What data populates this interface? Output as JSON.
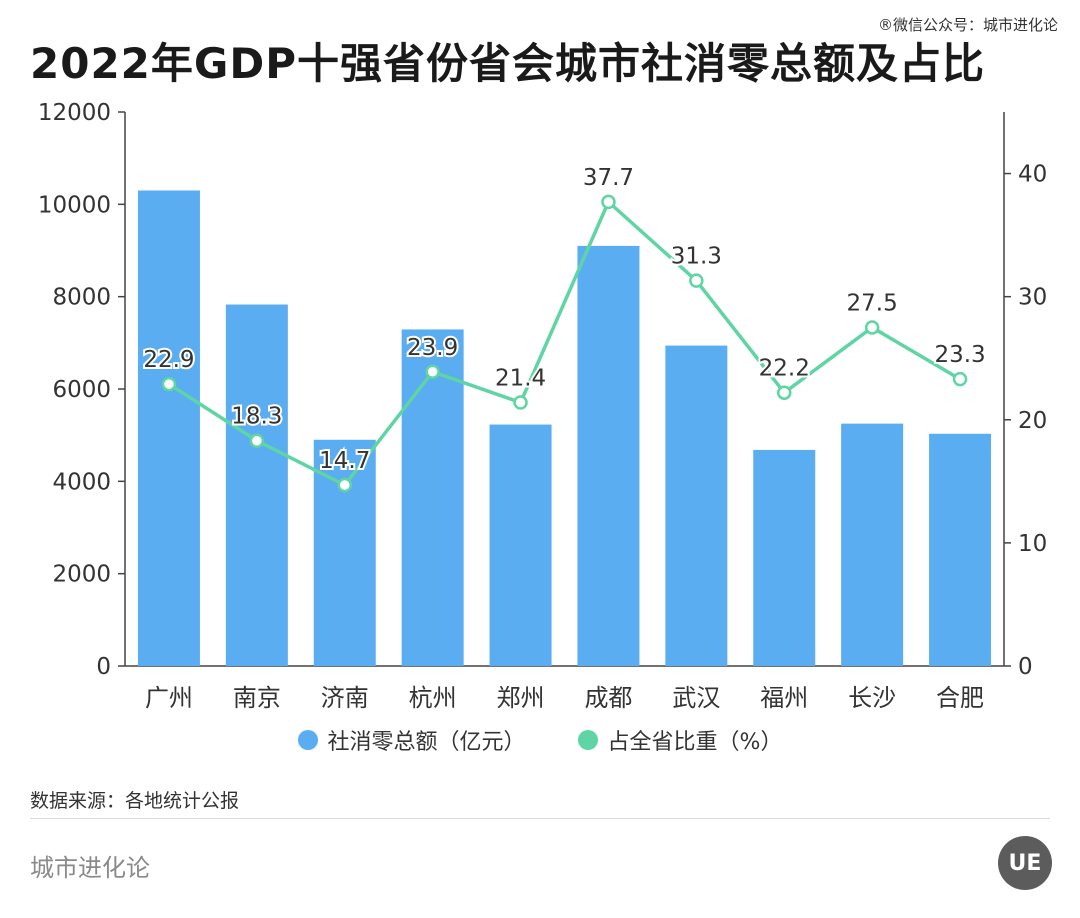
{
  "watermark": "®微信公众号：城市进化论",
  "brand_logo": "UE",
  "source": "数据来源：各地统计公报",
  "brand": "城市进化论",
  "colors": {
    "bar": "#5aadf0",
    "line": "#5fd4a5"
  },
  "chart_data": {
    "type": "bar",
    "title": "2022年GDP十强省份省会城市社消零总额及占比",
    "categories": [
      "广州",
      "南京",
      "济南",
      "杭州",
      "郑州",
      "成都",
      "武汉",
      "福州",
      "长沙",
      "合肥"
    ],
    "series": [
      {
        "name": "社消零总额（亿元）",
        "type": "bar",
        "axis": "left",
        "values": [
          10300,
          7830,
          4900,
          7290,
          5230,
          9100,
          6940,
          4680,
          5250,
          5030
        ]
      },
      {
        "name": "占全省比重（%）",
        "type": "line",
        "axis": "right",
        "values": [
          22.9,
          18.3,
          14.7,
          23.9,
          21.4,
          37.7,
          31.3,
          22.2,
          27.5,
          23.3
        ]
      }
    ],
    "y_left": {
      "ylim": [
        0,
        12000
      ],
      "ticks": [
        0,
        2000,
        4000,
        6000,
        8000,
        10000,
        12000
      ]
    },
    "y_right": {
      "ylim": [
        0,
        45
      ],
      "ticks": [
        0,
        10,
        20,
        30,
        40
      ]
    },
    "legend_position": "bottom",
    "grid": false
  }
}
